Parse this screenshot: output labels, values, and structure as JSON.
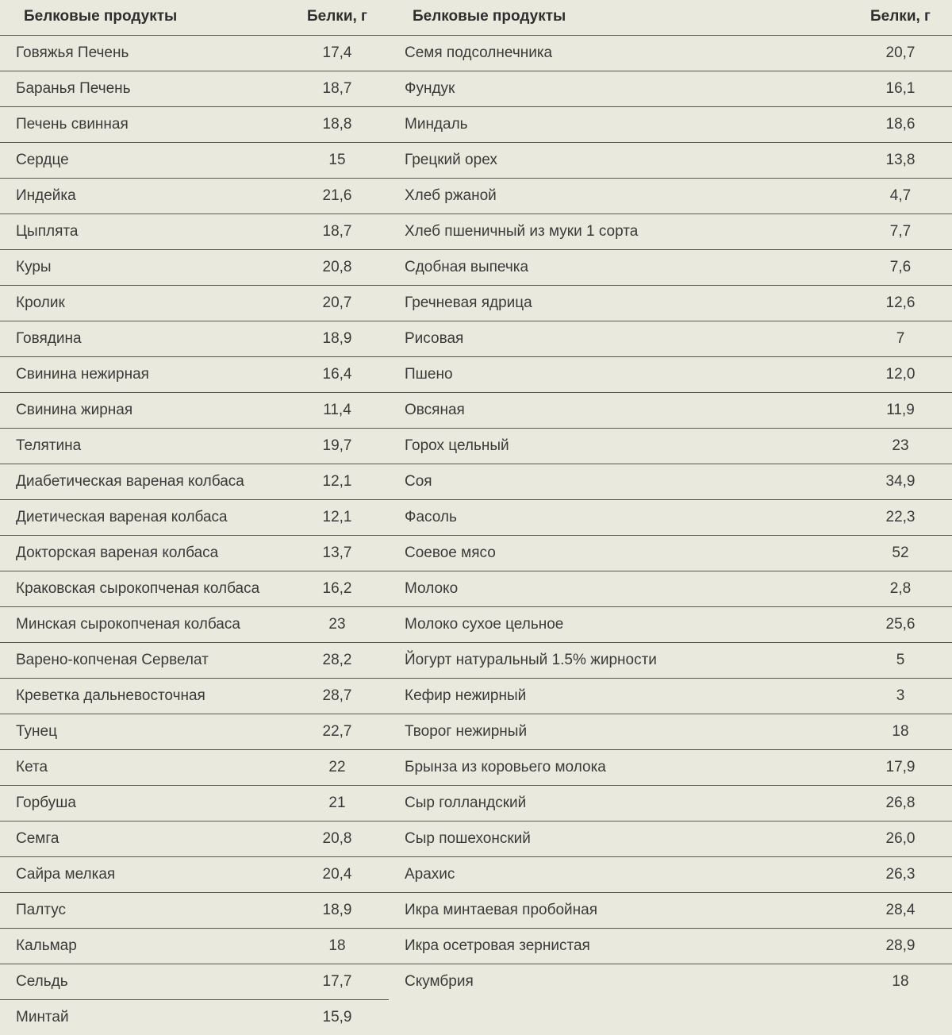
{
  "type": "table",
  "background_color": "#e9eadd",
  "border_color": "#5a5a52",
  "text_color": "#383838",
  "header_fontsize": 19,
  "cell_fontsize": 19,
  "font_family": "Arial",
  "columns": [
    {
      "label": "Белковые продукты",
      "align": "left"
    },
    {
      "label": "Белки, г",
      "align": "center"
    },
    {
      "label": "Белковые продукты",
      "align": "left"
    },
    {
      "label": "Белки, г",
      "align": "center"
    }
  ],
  "left_rows": [
    {
      "name": "Говяжья Печень",
      "value": "17,4"
    },
    {
      "name": "Баранья Печень",
      "value": "18,7"
    },
    {
      "name": "Печень свинная",
      "value": "18,8"
    },
    {
      "name": "Сердце",
      "value": "15"
    },
    {
      "name": "Индейка",
      "value": "21,6"
    },
    {
      "name": "Цыплята",
      "value": "18,7"
    },
    {
      "name": "Куры",
      "value": "20,8"
    },
    {
      "name": "Кролик",
      "value": "20,7"
    },
    {
      "name": "Говядина",
      "value": "18,9"
    },
    {
      "name": "Свинина нежирная",
      "value": "16,4"
    },
    {
      "name": "Свинина жирная",
      "value": "11,4"
    },
    {
      "name": "Телятина",
      "value": "19,7"
    },
    {
      "name": "Диабетическая вареная колбаса",
      "value": "12,1"
    },
    {
      "name": "Диетическая вареная колбаса",
      "value": "12,1"
    },
    {
      "name": "Докторская вареная колбаса",
      "value": "13,7"
    },
    {
      "name": "Краковская сырокопченая колбаса",
      "value": "16,2"
    },
    {
      "name": "Минская сырокопченая колбаса",
      "value": "23"
    },
    {
      "name": "Варено-копченая Сервелат",
      "value": "28,2"
    },
    {
      "name": "Креветка дальневосточная",
      "value": "28,7"
    },
    {
      "name": "Тунец",
      "value": "22,7"
    },
    {
      "name": "Кета",
      "value": "22"
    },
    {
      "name": "Горбуша",
      "value": "21"
    },
    {
      "name": "Семга",
      "value": "20,8"
    },
    {
      "name": "Сайра мелкая",
      "value": "20,4"
    },
    {
      "name": "Палтус",
      "value": "18,9"
    },
    {
      "name": "Кальмар",
      "value": "18"
    },
    {
      "name": "Сельдь",
      "value": "17,7"
    },
    {
      "name": "Минтай",
      "value": "15,9"
    }
  ],
  "right_rows": [
    {
      "name": "Семя подсолнечника",
      "value": "20,7"
    },
    {
      "name": "Фундук",
      "value": "16,1"
    },
    {
      "name": "Миндаль",
      "value": "18,6"
    },
    {
      "name": "Грецкий орех",
      "value": "13,8"
    },
    {
      "name": "Хлеб ржаной",
      "value": "4,7"
    },
    {
      "name": "Хлеб пшеничный из муки 1 сорта",
      "value": "7,7"
    },
    {
      "name": "Сдобная выпечка",
      "value": "7,6"
    },
    {
      "name": "Гречневая ядрица",
      "value": "12,6"
    },
    {
      "name": "Рисовая",
      "value": "7"
    },
    {
      "name": "Пшено",
      "value": "12,0"
    },
    {
      "name": "Овсяная",
      "value": "11,9"
    },
    {
      "name": "Горох цельный",
      "value": "23"
    },
    {
      "name": "Соя",
      "value": "34,9"
    },
    {
      "name": "Фасоль",
      "value": "22,3"
    },
    {
      "name": "Соевое мясо",
      "value": "52"
    },
    {
      "name": "Молоко",
      "value": "2,8"
    },
    {
      "name": "Молоко сухое цельное",
      "value": "25,6"
    },
    {
      "name": "Йогурт натуральный 1.5% жирности",
      "value": "5"
    },
    {
      "name": "Кефир нежирный",
      "value": "3"
    },
    {
      "name": "Творог нежирный",
      "value": "18"
    },
    {
      "name": "Брынза из коровьего молока",
      "value": "17,9"
    },
    {
      "name": "Сыр голландский",
      "value": "26,8"
    },
    {
      "name": "Сыр пошехонский",
      "value": "26,0"
    },
    {
      "name": "Арахис",
      "value": "26,3"
    },
    {
      "name": "Икра минтаевая пробойная",
      "value": "28,4"
    },
    {
      "name": "Икра осетровая зернистая",
      "value": "28,9"
    },
    {
      "name": "Скумбрия",
      "value": "18"
    }
  ]
}
